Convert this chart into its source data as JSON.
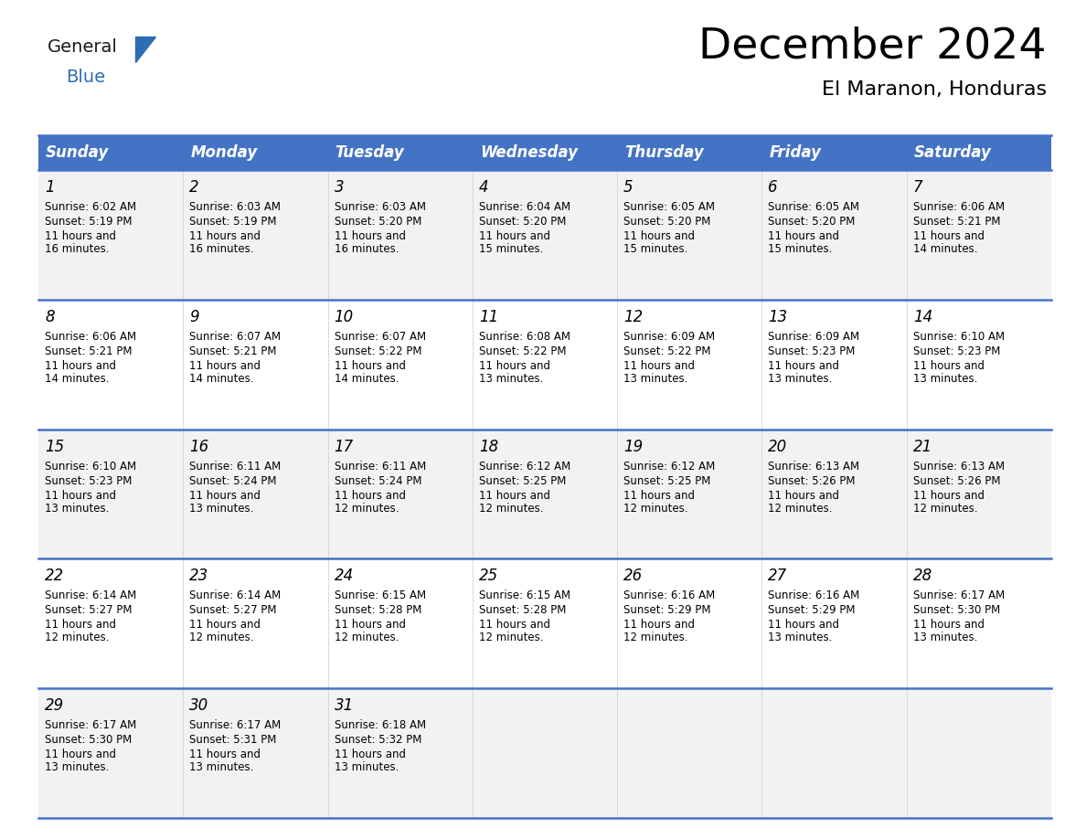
{
  "title": "December 2024",
  "subtitle": "El Maranon, Honduras",
  "header_bg_color": "#4472C4",
  "header_text_color": "#FFFFFF",
  "cell_bg_odd": "#F2F2F2",
  "cell_bg_even": "#FFFFFF",
  "border_color": "#4472C4",
  "weekdays": [
    "Sunday",
    "Monday",
    "Tuesday",
    "Wednesday",
    "Thursday",
    "Friday",
    "Saturday"
  ],
  "title_fontsize": 34,
  "subtitle_fontsize": 16,
  "header_fontsize": 12,
  "cell_day_fontsize": 12,
  "cell_text_fontsize": 8.5,
  "logo_general_color": "#1a1a1a",
  "logo_blue_color": "#2E6DB4",
  "calendar_data": [
    [
      {
        "day": "1",
        "sunrise": "6:02 AM",
        "sunset": "5:19 PM",
        "daylight": "11 hours and 16 minutes."
      },
      {
        "day": "2",
        "sunrise": "6:03 AM",
        "sunset": "5:19 PM",
        "daylight": "11 hours and 16 minutes."
      },
      {
        "day": "3",
        "sunrise": "6:03 AM",
        "sunset": "5:20 PM",
        "daylight": "11 hours and 16 minutes."
      },
      {
        "day": "4",
        "sunrise": "6:04 AM",
        "sunset": "5:20 PM",
        "daylight": "11 hours and 15 minutes."
      },
      {
        "day": "5",
        "sunrise": "6:05 AM",
        "sunset": "5:20 PM",
        "daylight": "11 hours and 15 minutes."
      },
      {
        "day": "6",
        "sunrise": "6:05 AM",
        "sunset": "5:20 PM",
        "daylight": "11 hours and 15 minutes."
      },
      {
        "day": "7",
        "sunrise": "6:06 AM",
        "sunset": "5:21 PM",
        "daylight": "11 hours and 14 minutes."
      }
    ],
    [
      {
        "day": "8",
        "sunrise": "6:06 AM",
        "sunset": "5:21 PM",
        "daylight": "11 hours and 14 minutes."
      },
      {
        "day": "9",
        "sunrise": "6:07 AM",
        "sunset": "5:21 PM",
        "daylight": "11 hours and 14 minutes."
      },
      {
        "day": "10",
        "sunrise": "6:07 AM",
        "sunset": "5:22 PM",
        "daylight": "11 hours and 14 minutes."
      },
      {
        "day": "11",
        "sunrise": "6:08 AM",
        "sunset": "5:22 PM",
        "daylight": "11 hours and 13 minutes."
      },
      {
        "day": "12",
        "sunrise": "6:09 AM",
        "sunset": "5:22 PM",
        "daylight": "11 hours and 13 minutes."
      },
      {
        "day": "13",
        "sunrise": "6:09 AM",
        "sunset": "5:23 PM",
        "daylight": "11 hours and 13 minutes."
      },
      {
        "day": "14",
        "sunrise": "6:10 AM",
        "sunset": "5:23 PM",
        "daylight": "11 hours and 13 minutes."
      }
    ],
    [
      {
        "day": "15",
        "sunrise": "6:10 AM",
        "sunset": "5:23 PM",
        "daylight": "11 hours and 13 minutes."
      },
      {
        "day": "16",
        "sunrise": "6:11 AM",
        "sunset": "5:24 PM",
        "daylight": "11 hours and 13 minutes."
      },
      {
        "day": "17",
        "sunrise": "6:11 AM",
        "sunset": "5:24 PM",
        "daylight": "11 hours and 12 minutes."
      },
      {
        "day": "18",
        "sunrise": "6:12 AM",
        "sunset": "5:25 PM",
        "daylight": "11 hours and 12 minutes."
      },
      {
        "day": "19",
        "sunrise": "6:12 AM",
        "sunset": "5:25 PM",
        "daylight": "11 hours and 12 minutes."
      },
      {
        "day": "20",
        "sunrise": "6:13 AM",
        "sunset": "5:26 PM",
        "daylight": "11 hours and 12 minutes."
      },
      {
        "day": "21",
        "sunrise": "6:13 AM",
        "sunset": "5:26 PM",
        "daylight": "11 hours and 12 minutes."
      }
    ],
    [
      {
        "day": "22",
        "sunrise": "6:14 AM",
        "sunset": "5:27 PM",
        "daylight": "11 hours and 12 minutes."
      },
      {
        "day": "23",
        "sunrise": "6:14 AM",
        "sunset": "5:27 PM",
        "daylight": "11 hours and 12 minutes."
      },
      {
        "day": "24",
        "sunrise": "6:15 AM",
        "sunset": "5:28 PM",
        "daylight": "11 hours and 12 minutes."
      },
      {
        "day": "25",
        "sunrise": "6:15 AM",
        "sunset": "5:28 PM",
        "daylight": "11 hours and 12 minutes."
      },
      {
        "day": "26",
        "sunrise": "6:16 AM",
        "sunset": "5:29 PM",
        "daylight": "11 hours and 12 minutes."
      },
      {
        "day": "27",
        "sunrise": "6:16 AM",
        "sunset": "5:29 PM",
        "daylight": "11 hours and 13 minutes."
      },
      {
        "day": "28",
        "sunrise": "6:17 AM",
        "sunset": "5:30 PM",
        "daylight": "11 hours and 13 minutes."
      }
    ],
    [
      {
        "day": "29",
        "sunrise": "6:17 AM",
        "sunset": "5:30 PM",
        "daylight": "11 hours and 13 minutes."
      },
      {
        "day": "30",
        "sunrise": "6:17 AM",
        "sunset": "5:31 PM",
        "daylight": "11 hours and 13 minutes."
      },
      {
        "day": "31",
        "sunrise": "6:18 AM",
        "sunset": "5:32 PM",
        "daylight": "11 hours and 13 minutes."
      },
      null,
      null,
      null,
      null
    ]
  ]
}
